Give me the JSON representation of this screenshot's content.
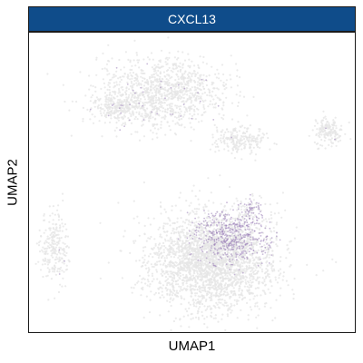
{
  "chart_data": {
    "type": "scatter",
    "title": "CXCL13",
    "xlabel": "UMAP1",
    "ylabel": "UMAP2",
    "xlim": [
      0,
      100
    ],
    "ylim": [
      0,
      100
    ],
    "grid": false,
    "legend": "none",
    "background_color": "#e6e6e6",
    "expression_color": "#9b7fb8",
    "strip_color": "#0f4c8a",
    "clusters": [
      {
        "name": "upper-cluster",
        "cx": 41,
        "cy": 80,
        "sx": 13,
        "sy": 8,
        "n": 1100,
        "expr": 0.02
      },
      {
        "name": "upper-cluster-tail",
        "cx": 28,
        "cy": 75,
        "sx": 6,
        "sy": 3,
        "n": 250,
        "expr": 0.05
      },
      {
        "name": "middle-island",
        "cx": 65,
        "cy": 64,
        "sx": 5,
        "sy": 3,
        "n": 220,
        "expr": 0.01
      },
      {
        "name": "right-island",
        "cx": 92,
        "cy": 67,
        "sx": 3,
        "sy": 3,
        "n": 160,
        "expr": 0.01
      },
      {
        "name": "left-island",
        "cx": 8,
        "cy": 28,
        "sx": 3,
        "sy": 8,
        "n": 240,
        "expr": 0.01
      },
      {
        "name": "large-cluster",
        "cx": 56,
        "cy": 24,
        "sx": 13,
        "sy": 11,
        "n": 2600,
        "expr": 0.0
      },
      {
        "name": "large-cluster-hotspot",
        "cx": 62,
        "cy": 32,
        "sx": 8,
        "sy": 6,
        "n": 650,
        "expr": 0.75
      },
      {
        "name": "arm-tip",
        "cx": 68,
        "cy": 41,
        "sx": 2,
        "sy": 3,
        "n": 90,
        "expr": 0.55
      }
    ]
  }
}
